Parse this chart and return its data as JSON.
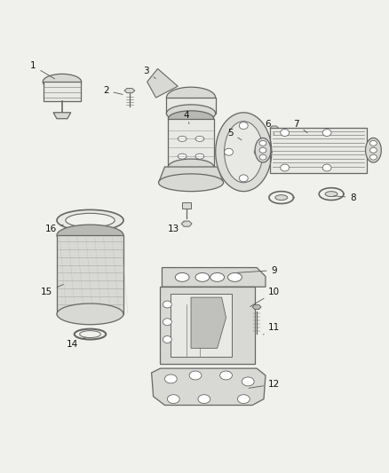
{
  "background_color": "#f0f0ec",
  "fig_width": 4.38,
  "fig_height": 5.33,
  "dpi": 100,
  "label_fontsize": 7.5,
  "line_color": "#555555",
  "label_color": "#111111",
  "draw_color": "#666666",
  "fill_light": "#e8e8e4",
  "fill_mid": "#d8d8d4",
  "fill_dark": "#b8b8b4"
}
